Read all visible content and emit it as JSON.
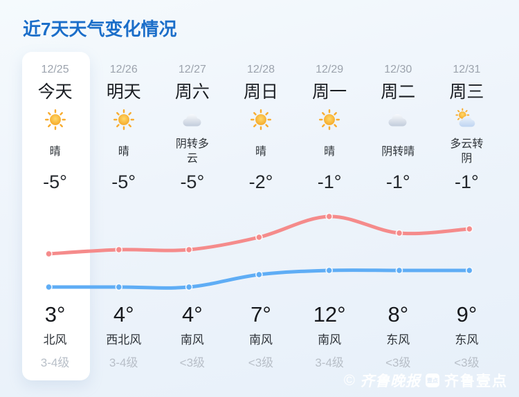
{
  "title": "近7天天气变化情况",
  "colors": {
    "accent_title": "#1B6EC9",
    "background": "#EDF3FA",
    "today_card": "#FFFFFF",
    "high_line": "#F58B8B",
    "low_line": "#5FADF5",
    "date_gray": "#9CA3AD",
    "wind_level_gray": "#B8BFC8"
  },
  "days": [
    {
      "date": "12/25",
      "label": "今天",
      "icon": "sunny",
      "condition": "晴",
      "low": "-5°",
      "high": "3°",
      "wind_dir": "北风",
      "wind_level": "3-4级",
      "is_today": true
    },
    {
      "date": "12/26",
      "label": "明天",
      "icon": "sunny",
      "condition": "晴",
      "low": "-5°",
      "high": "4°",
      "wind_dir": "西北风",
      "wind_level": "3-4级",
      "is_today": false
    },
    {
      "date": "12/27",
      "label": "周六",
      "icon": "cloudy",
      "condition": "阴转多云",
      "low": "-5°",
      "high": "4°",
      "wind_dir": "南风",
      "wind_level": "<3级",
      "is_today": false
    },
    {
      "date": "12/28",
      "label": "周日",
      "icon": "sunny",
      "condition": "晴",
      "low": "-2°",
      "high": "7°",
      "wind_dir": "南风",
      "wind_level": "<3级",
      "is_today": false
    },
    {
      "date": "12/29",
      "label": "周一",
      "icon": "sunny",
      "condition": "晴",
      "low": "-1°",
      "high": "12°",
      "wind_dir": "南风",
      "wind_level": "3-4级",
      "is_today": false
    },
    {
      "date": "12/30",
      "label": "周二",
      "icon": "cloudy",
      "condition": "阴转晴",
      "low": "-1°",
      "high": "8°",
      "wind_dir": "东风",
      "wind_level": "<3级",
      "is_today": false
    },
    {
      "date": "12/31",
      "label": "周三",
      "icon": "partly-cloudy",
      "condition": "多云转阴",
      "low": "-1°",
      "high": "9°",
      "wind_dir": "东风",
      "wind_level": "<3级",
      "is_today": false
    }
  ],
  "chart_data": {
    "type": "line",
    "categories": [
      "12/25",
      "12/26",
      "12/27",
      "12/28",
      "12/29",
      "12/30",
      "12/31"
    ],
    "series": [
      {
        "name": "high",
        "color": "#F58B8B",
        "values": [
          3,
          4,
          4,
          7,
          12,
          8,
          9
        ]
      },
      {
        "name": "low",
        "color": "#5FADF5",
        "values": [
          -5,
          -5,
          -5,
          -2,
          -1,
          -1,
          -1
        ]
      }
    ],
    "ylim": [
      -8,
      15
    ],
    "grid": false,
    "legend": false,
    "markers": true,
    "smooth": true
  },
  "watermark": {
    "copyright_symbol": "©",
    "newspaper": "齐鲁晚报",
    "badge": "壹点",
    "app": "齐鲁壹点"
  }
}
